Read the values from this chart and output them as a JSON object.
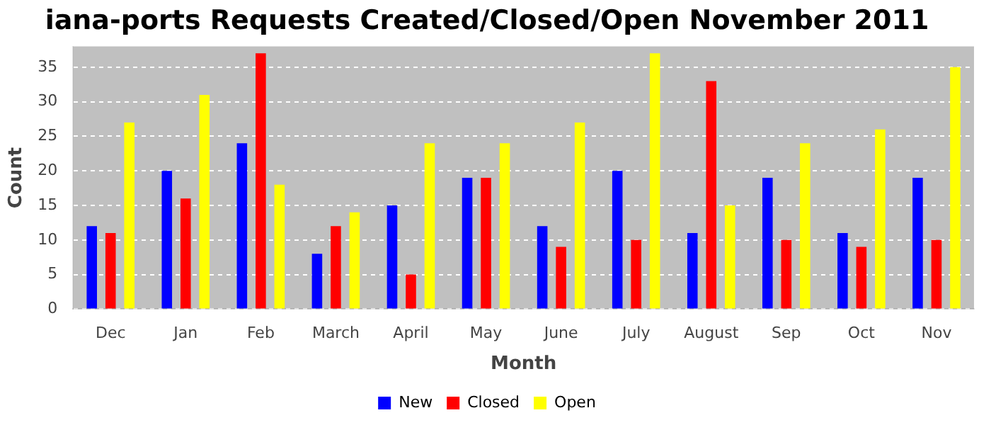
{
  "chart_data": {
    "type": "bar",
    "title": "iana-ports Requests Created/Closed/Open November 2011",
    "xlabel": "Month",
    "ylabel": "Count",
    "categories": [
      "Dec",
      "Jan",
      "Feb",
      "March",
      "April",
      "May",
      "June",
      "July",
      "August",
      "Sep",
      "Oct",
      "Nov"
    ],
    "series": [
      {
        "name": "New",
        "color": "#0000ff",
        "values": [
          12,
          20,
          24,
          8,
          15,
          19,
          12,
          20,
          11,
          19,
          11,
          19
        ]
      },
      {
        "name": "Closed",
        "color": "#ff0000",
        "values": [
          11,
          16,
          37,
          12,
          5,
          19,
          9,
          10,
          33,
          10,
          9,
          10
        ]
      },
      {
        "name": "Open",
        "color": "#ffff00",
        "values": [
          27,
          31,
          18,
          14,
          24,
          24,
          27,
          37,
          15,
          24,
          26,
          35
        ]
      }
    ],
    "ylim": [
      0,
      38
    ],
    "yticks": [
      0,
      5,
      10,
      15,
      20,
      25,
      30,
      35
    ],
    "grid": "y",
    "legend": "bottom"
  }
}
